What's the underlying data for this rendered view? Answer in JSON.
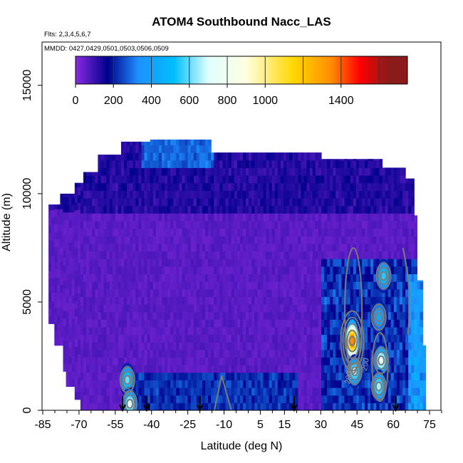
{
  "chart_data": {
    "type": "heatmap",
    "title": "ATOM4 Southbound Nacc_LAS",
    "flights_text": "Flts: 2,3,4,5,6,7",
    "dates_text": "MMDD: 0427,0429,0501,0503,0506,0509",
    "xlabel": "Latitude (deg N)",
    "ylabel": "Altitude (m)",
    "xlim": [
      -85,
      80
    ],
    "ylim": [
      0,
      17000
    ],
    "x_ticks": [
      -85,
      -70,
      -55,
      -40,
      -25,
      -10,
      5,
      15,
      30,
      45,
      60,
      75
    ],
    "x_tick_labels": [
      "-85",
      "-70",
      "-55",
      "-40",
      "-25",
      "-10",
      "5",
      "15",
      "30",
      "45",
      "60",
      "75"
    ],
    "x_minor_ticks": [
      -80,
      -75,
      -65,
      -60,
      -50,
      -45,
      -35,
      -30,
      -20,
      -15,
      -5,
      0,
      10,
      20,
      25,
      35,
      40,
      50,
      55,
      65,
      70,
      80
    ],
    "y_ticks": [
      0,
      5000,
      10000,
      15000
    ],
    "y_tick_labels": [
      "0",
      "5000",
      "10000",
      "15000"
    ],
    "colorbar": {
      "min": 0,
      "max": 1750,
      "ticks": [
        0,
        200,
        400,
        600,
        800,
        1000,
        1400
      ],
      "tick_labels": [
        "0",
        "200",
        "400",
        "600",
        "800",
        "1000",
        "1400"
      ],
      "boundaries": [
        200,
        400,
        600,
        800,
        1000,
        1200,
        1400,
        1600
      ],
      "colors": [
        "#8a2be2",
        "#00008b",
        "#1e90ff",
        "#00bfff",
        "#e0ffff",
        "#ffffe0",
        "#ffd700",
        "#ff8c00",
        "#ff0000",
        "#8b1a1a"
      ]
    },
    "contour_levels_labeled": [
      "200",
      "200"
    ],
    "profile_latitudes": [
      -52,
      -42,
      -20,
      19,
      61
    ],
    "data_range": {
      "lat": [
        -85,
        73
      ],
      "alt": [
        0,
        12500
      ]
    },
    "hotspots": [
      {
        "lat": 43,
        "alt": 3200,
        "value": 1350
      },
      {
        "lat": 44,
        "alt": 1800,
        "value": 650
      },
      {
        "lat": 55,
        "alt": 2300,
        "value": 750
      },
      {
        "lat": 54,
        "alt": 1100,
        "value": 650
      },
      {
        "lat": 56,
        "alt": 6200,
        "value": 550
      },
      {
        "lat": -50,
        "alt": 1400,
        "value": 600
      },
      {
        "lat": -49,
        "alt": 300,
        "value": 700
      },
      {
        "lat": 54,
        "alt": 4300,
        "value": 450
      }
    ]
  }
}
